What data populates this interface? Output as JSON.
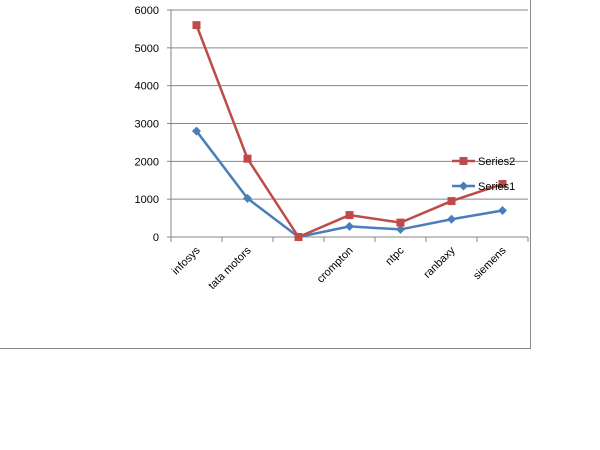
{
  "chart_data": {
    "type": "line",
    "title": "",
    "xlabel": "",
    "ylabel": "",
    "categories": [
      "infosys",
      "tata motors",
      "",
      "crompton",
      "ntpc",
      "ranbaxy",
      "siemens"
    ],
    "ylim": [
      0,
      6000
    ],
    "yticks": [
      0,
      1000,
      2000,
      3000,
      4000,
      5000,
      6000
    ],
    "grid": true,
    "legend_position": "right",
    "series": [
      {
        "name": "Series2",
        "color": "#be4b48",
        "marker": "square",
        "values": [
          5600,
          2070,
          0,
          580,
          380,
          950,
          1400
        ]
      },
      {
        "name": "Series1",
        "color": "#4a7ebb",
        "marker": "diamond",
        "values": [
          2800,
          1020,
          0,
          280,
          200,
          470,
          700
        ]
      }
    ]
  }
}
